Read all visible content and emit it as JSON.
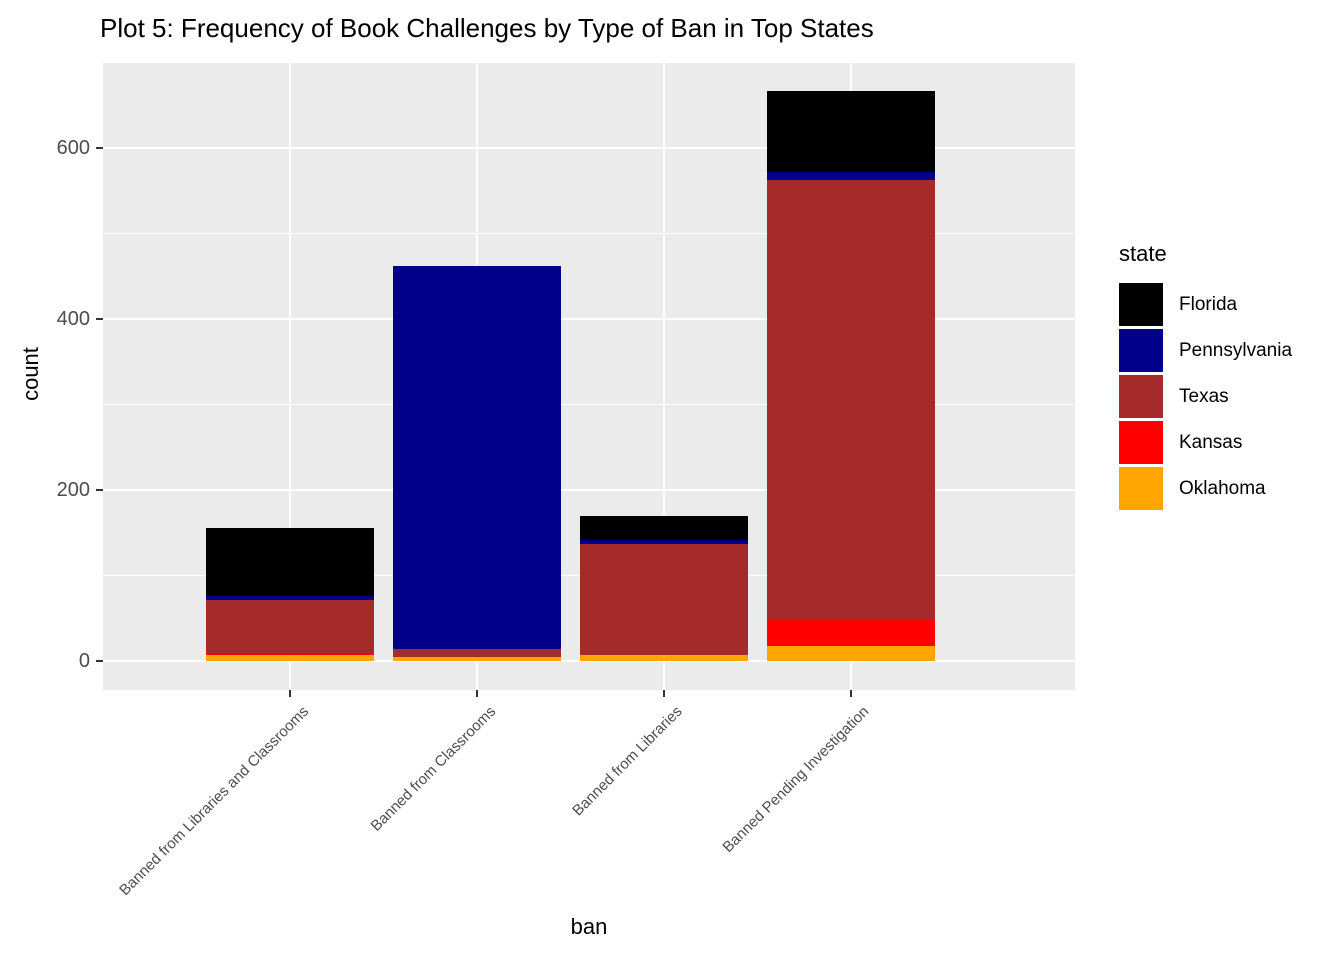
{
  "title": "Plot 5: Frequency of Book Challenges by Type of Ban in Top States",
  "x_axis_title": "ban",
  "y_axis_title": "count",
  "legend": {
    "title": "state",
    "entries": [
      {
        "label": "Florida",
        "color": "#000000"
      },
      {
        "label": "Pennsylvania",
        "color": "#00008B"
      },
      {
        "label": "Texas",
        "color": "#A52A2A"
      },
      {
        "label": "Kansas",
        "color": "#FF0000"
      },
      {
        "label": "Oklahoma",
        "color": "#FFA500"
      }
    ]
  },
  "chart_data": {
    "type": "bar",
    "stacked": true,
    "title": "Plot 5: Frequency of Book Challenges by Type of Ban in Top States",
    "xlabel": "ban",
    "ylabel": "count",
    "categories": [
      "Banned from Libraries and Classrooms",
      "Banned from Classrooms",
      "Banned from Libraries",
      "Banned Pending Investigation"
    ],
    "series": [
      {
        "name": "Florida",
        "color": "#000000",
        "values": [
          80,
          0,
          28,
          95
        ]
      },
      {
        "name": "Pennsylvania",
        "color": "#00008B",
        "values": [
          4,
          447,
          5,
          10
        ]
      },
      {
        "name": "Texas",
        "color": "#A52A2A",
        "values": [
          62,
          10,
          129,
          514
        ]
      },
      {
        "name": "Kansas",
        "color": "#FF0000",
        "values": [
          2,
          0,
          0,
          30
        ]
      },
      {
        "name": "Oklahoma",
        "color": "#FFA500",
        "values": [
          8,
          5,
          8,
          18
        ]
      }
    ],
    "stack_order_bottom_to_top": [
      "Oklahoma",
      "Kansas",
      "Texas",
      "Pennsylvania",
      "Florida"
    ],
    "totals": [
      156,
      462,
      170,
      667
    ],
    "y_major_ticks": [
      0,
      200,
      400,
      600
    ],
    "y_minor_ticks": [
      100,
      300,
      500,
      700
    ],
    "ylim": [
      -33.4,
      700.4
    ],
    "grid": true,
    "legend_position": "right",
    "panel_background": "#EBEBEB",
    "gridline_color": "#FFFFFF",
    "axis_text_color": "#4D4D4D"
  }
}
